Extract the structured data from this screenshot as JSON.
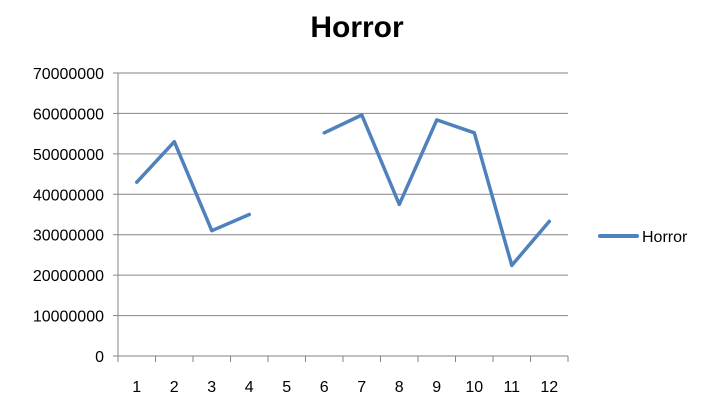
{
  "chart_data": {
    "type": "line",
    "title": "Horror",
    "xlabel": "",
    "ylabel": "",
    "categories": [
      "1",
      "2",
      "3",
      "4",
      "5",
      "6",
      "7",
      "8",
      "9",
      "10",
      "11",
      "12"
    ],
    "ylim": [
      0,
      70000000
    ],
    "yticks": [
      "0",
      "10000000",
      "20000000",
      "30000000",
      "40000000",
      "50000000",
      "60000000",
      "70000000"
    ],
    "grid": true,
    "legend_position": "right",
    "series": [
      {
        "name": "Horror",
        "color": "#4f81bd",
        "values": [
          43000000,
          53000000,
          31000000,
          35000000,
          null,
          55200000,
          59600000,
          37500000,
          58400000,
          55200000,
          22400000,
          33300000
        ]
      }
    ]
  }
}
